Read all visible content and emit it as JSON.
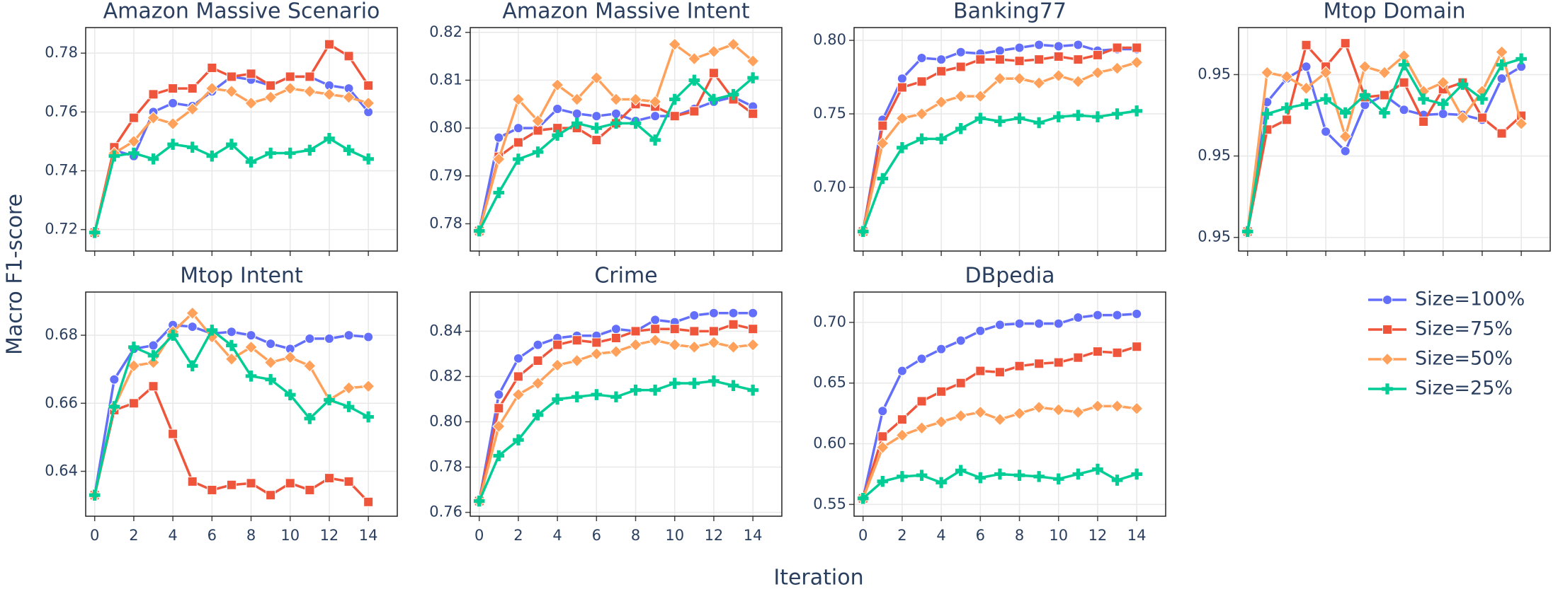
{
  "ylabel": "Macro F1-score",
  "xlabel": "Iteration",
  "chart_data": [
    {
      "type": "line",
      "title": "Amazon Massive Scenario",
      "x": [
        0,
        1,
        2,
        3,
        4,
        5,
        6,
        7,
        8,
        9,
        10,
        11,
        12,
        13,
        14
      ],
      "xlim": [
        -0.46,
        15.48
      ],
      "xticks": [
        0,
        2,
        4,
        6,
        8,
        10,
        12,
        14
      ],
      "ylim": [
        0.7127,
        0.7887
      ],
      "yticks": [
        0.72,
        0.74,
        0.76,
        0.78
      ],
      "grid": true,
      "series": [
        {
          "name": "Size=100%",
          "color": "#636efa",
          "marker": "circle",
          "values": [
            0.719,
            0.747,
            0.745,
            0.76,
            0.763,
            0.762,
            0.767,
            0.772,
            0.771,
            0.769,
            0.772,
            0.772,
            0.769,
            0.768,
            0.76
          ]
        },
        {
          "name": "Size=75%",
          "color": "#ef553b",
          "marker": "square",
          "values": [
            0.719,
            0.748,
            0.758,
            0.766,
            0.768,
            0.768,
            0.775,
            0.772,
            0.773,
            0.769,
            0.772,
            0.772,
            0.783,
            0.779,
            0.769
          ]
        },
        {
          "name": "Size=50%",
          "color": "#ffa15a",
          "marker": "diamond",
          "values": [
            0.719,
            0.746,
            0.75,
            0.758,
            0.756,
            0.761,
            0.768,
            0.767,
            0.763,
            0.765,
            0.768,
            0.767,
            0.766,
            0.765,
            0.763
          ]
        },
        {
          "name": "Size=25%",
          "color": "#00cc96",
          "marker": "cross",
          "values": [
            0.719,
            0.745,
            0.746,
            0.744,
            0.749,
            0.748,
            0.745,
            0.749,
            0.743,
            0.746,
            0.746,
            0.747,
            0.751,
            0.747,
            0.744
          ]
        }
      ]
    },
    {
      "type": "line",
      "title": "Amazon Massive Intent",
      "x": [
        0,
        1,
        2,
        3,
        4,
        5,
        6,
        7,
        8,
        9,
        10,
        11,
        12,
        13,
        14
      ],
      "xlim": [
        -0.46,
        15.48
      ],
      "xticks": [
        0,
        2,
        4,
        6,
        8,
        10,
        12,
        14
      ],
      "ylim": [
        0.7743,
        0.821
      ],
      "yticks": [
        0.78,
        0.79,
        {
          "value": 0.8,
          "label": "0.80"
        },
        0.81,
        0.82
      ],
      "grid": true,
      "series": [
        {
          "name": "Size=100%",
          "color": "#636efa",
          "marker": "circle",
          "values": [
            0.7785,
            0.798,
            0.8,
            0.8,
            0.804,
            0.803,
            0.8025,
            0.803,
            0.8015,
            0.8025,
            0.8025,
            0.804,
            0.8055,
            0.8065,
            0.8045
          ]
        },
        {
          "name": "Size=75%",
          "color": "#ef553b",
          "marker": "square",
          "values": [
            0.7785,
            0.794,
            0.797,
            0.7995,
            0.8,
            0.8,
            0.7975,
            0.801,
            0.805,
            0.8045,
            0.8025,
            0.8035,
            0.8115,
            0.806,
            0.803
          ]
        },
        {
          "name": "Size=50%",
          "color": "#ffa15a",
          "marker": "diamond",
          "values": [
            0.7785,
            0.7935,
            0.806,
            0.8015,
            0.809,
            0.806,
            0.8105,
            0.806,
            0.806,
            0.8055,
            0.8175,
            0.8145,
            0.816,
            0.8175,
            0.814
          ]
        },
        {
          "name": "Size=25%",
          "color": "#00cc96",
          "marker": "cross",
          "values": [
            0.7785,
            0.7865,
            0.7935,
            0.795,
            0.7985,
            0.801,
            0.8,
            0.801,
            0.801,
            0.7975,
            0.806,
            0.81,
            0.806,
            0.807,
            0.8105
          ]
        }
      ]
    },
    {
      "type": "line",
      "title": "Banking77",
      "x": [
        0,
        1,
        2,
        3,
        4,
        5,
        6,
        7,
        8,
        9,
        10,
        11,
        12,
        13,
        14
      ],
      "xlim": [
        -0.46,
        15.48
      ],
      "xticks": [
        0,
        2,
        4,
        6,
        8,
        10,
        12,
        14
      ],
      "ylim": [
        0.6567,
        0.8087
      ],
      "yticks": [
        {
          "value": 0.7,
          "label": "0.70"
        },
        0.75,
        {
          "value": 0.8,
          "label": "0.80"
        }
      ],
      "grid": true,
      "series": [
        {
          "name": "Size=100%",
          "color": "#636efa",
          "marker": "circle",
          "values": [
            0.67,
            0.746,
            0.774,
            0.788,
            0.787,
            0.792,
            0.791,
            0.793,
            0.795,
            0.797,
            0.796,
            0.797,
            0.793,
            0.794,
            0.794
          ]
        },
        {
          "name": "Size=75%",
          "color": "#ef553b",
          "marker": "square",
          "values": [
            0.67,
            0.742,
            0.768,
            0.772,
            0.779,
            0.782,
            0.787,
            0.787,
            0.786,
            0.787,
            0.789,
            0.787,
            0.79,
            0.795,
            0.795
          ]
        },
        {
          "name": "Size=50%",
          "color": "#ffa15a",
          "marker": "diamond",
          "values": [
            0.67,
            0.73,
            0.747,
            0.75,
            0.758,
            0.762,
            0.762,
            0.774,
            0.774,
            0.771,
            0.776,
            0.772,
            0.778,
            0.781,
            0.785
          ]
        },
        {
          "name": "Size=25%",
          "color": "#00cc96",
          "marker": "cross",
          "values": [
            0.67,
            0.706,
            0.727,
            0.733,
            0.733,
            0.74,
            0.747,
            0.745,
            0.747,
            0.744,
            0.748,
            0.749,
            0.748,
            0.75,
            0.752
          ]
        }
      ]
    },
    {
      "type": "line",
      "title": "Mtop Domain",
      "x": [
        0,
        1,
        2,
        3,
        4,
        5,
        6,
        7,
        8,
        9,
        10,
        11,
        12,
        13,
        14
      ],
      "xlim": [
        -0.46,
        15.48
      ],
      "xticks": [
        0,
        2,
        4,
        6,
        8,
        10,
        12,
        14
      ],
      "ylim": [
        0.94533,
        0.95631
      ],
      "yticks": [
        {
          "value": 0.946,
          "label": "0.95"
        },
        {
          "value": 0.95,
          "label": "0.95"
        },
        {
          "value": 0.954,
          "label": "0.95"
        }
      ],
      "grid": true,
      "series": [
        {
          "name": "Size=100%",
          "color": "#636efa",
          "marker": "circle",
          "values": [
            0.94629,
            0.95265,
            0.95381,
            0.95439,
            0.9512,
            0.95024,
            0.95251,
            0.95299,
            0.95227,
            0.95202,
            0.95207,
            0.95202,
            0.95178,
            0.95381,
            0.95439
          ]
        },
        {
          "name": "Size=75%",
          "color": "#ef553b",
          "marker": "square",
          "values": [
            0.94629,
            0.9513,
            0.95178,
            0.95545,
            0.95439,
            0.95554,
            0.95289,
            0.95299,
            0.95361,
            0.95169,
            0.95328,
            0.95361,
            0.95188,
            0.95111,
            0.95198
          ]
        },
        {
          "name": "Size=50%",
          "color": "#ffa15a",
          "marker": "diamond",
          "values": [
            0.94629,
            0.9541,
            0.9539,
            0.95333,
            0.9541,
            0.95096,
            0.95439,
            0.9541,
            0.95492,
            0.95318,
            0.95361,
            0.95188,
            0.95318,
            0.95511,
            0.95159
          ]
        },
        {
          "name": "Size=25%",
          "color": "#00cc96",
          "marker": "cross",
          "values": [
            0.94629,
            0.95207,
            0.95236,
            0.95255,
            0.9528,
            0.95212,
            0.95299,
            0.95212,
            0.95448,
            0.9528,
            0.95255,
            0.95352,
            0.9528,
            0.95448,
            0.95477
          ]
        }
      ]
    },
    {
      "type": "line",
      "title": "Mtop Intent",
      "x": [
        0,
        1,
        2,
        3,
        4,
        5,
        6,
        7,
        8,
        9,
        10,
        11,
        12,
        13,
        14
      ],
      "xlim": [
        -0.46,
        15.48
      ],
      "xticks": [
        0,
        2,
        4,
        6,
        8,
        10,
        12,
        14
      ],
      "ylim": [
        0.6268,
        0.6927
      ],
      "yticks": [
        0.64,
        0.66,
        0.68
      ],
      "grid": true,
      "series": [
        {
          "name": "Size=100%",
          "color": "#636efa",
          "marker": "circle",
          "values": [
            0.633,
            0.667,
            0.676,
            0.677,
            0.683,
            0.6825,
            0.6805,
            0.681,
            0.68,
            0.6775,
            0.676,
            0.679,
            0.679,
            0.68,
            0.6795
          ]
        },
        {
          "name": "Size=75%",
          "color": "#ef553b",
          "marker": "square",
          "values": [
            0.633,
            0.658,
            0.66,
            0.665,
            0.651,
            0.637,
            0.6345,
            0.636,
            0.6365,
            0.633,
            0.6365,
            0.6345,
            0.638,
            0.637,
            0.631
          ]
        },
        {
          "name": "Size=50%",
          "color": "#ffa15a",
          "marker": "diamond",
          "values": [
            0.633,
            0.659,
            0.671,
            0.672,
            0.681,
            0.6865,
            0.6795,
            0.673,
            0.6765,
            0.672,
            0.6735,
            0.671,
            0.661,
            0.6645,
            0.665
          ]
        },
        {
          "name": "Size=25%",
          "color": "#00cc96",
          "marker": "cross",
          "values": [
            0.633,
            0.659,
            0.6765,
            0.674,
            0.68,
            0.671,
            0.6815,
            0.677,
            0.668,
            0.667,
            0.6625,
            0.6555,
            0.661,
            0.659,
            0.656
          ]
        }
      ]
    },
    {
      "type": "line",
      "title": "Crime",
      "x": [
        0,
        1,
        2,
        3,
        4,
        5,
        6,
        7,
        8,
        9,
        10,
        11,
        12,
        13,
        14
      ],
      "xlim": [
        -0.46,
        15.48
      ],
      "xticks": [
        0,
        2,
        4,
        6,
        8,
        10,
        12,
        14
      ],
      "ylim": [
        0.7583,
        0.8573
      ],
      "yticks": [
        0.76,
        0.78,
        {
          "value": 0.8,
          "label": "0.80"
        },
        0.82,
        0.84
      ],
      "grid": true,
      "series": [
        {
          "name": "Size=100%",
          "color": "#636efa",
          "marker": "circle",
          "values": [
            0.765,
            0.812,
            0.828,
            0.834,
            0.837,
            0.838,
            0.838,
            0.841,
            0.84,
            0.845,
            0.844,
            0.847,
            0.848,
            0.848,
            0.848
          ]
        },
        {
          "name": "Size=75%",
          "color": "#ef553b",
          "marker": "square",
          "values": [
            0.765,
            0.806,
            0.82,
            0.827,
            0.834,
            0.836,
            0.835,
            0.837,
            0.84,
            0.841,
            0.841,
            0.84,
            0.84,
            0.843,
            0.841
          ]
        },
        {
          "name": "Size=50%",
          "color": "#ffa15a",
          "marker": "diamond",
          "values": [
            0.765,
            0.798,
            0.812,
            0.817,
            0.825,
            0.827,
            0.83,
            0.831,
            0.834,
            0.836,
            0.834,
            0.833,
            0.835,
            0.833,
            0.834
          ]
        },
        {
          "name": "Size=25%",
          "color": "#00cc96",
          "marker": "cross",
          "values": [
            0.765,
            0.785,
            0.792,
            0.803,
            0.81,
            0.811,
            0.812,
            0.811,
            0.814,
            0.814,
            0.817,
            0.817,
            0.818,
            0.816,
            0.814
          ]
        }
      ]
    },
    {
      "type": "line",
      "title": "DBpedia",
      "x": [
        0,
        1,
        2,
        3,
        4,
        5,
        6,
        7,
        8,
        9,
        10,
        11,
        12,
        13,
        14
      ],
      "xlim": [
        -0.46,
        15.48
      ],
      "xticks": [
        0,
        2,
        4,
        6,
        8,
        10,
        12,
        14
      ],
      "ylim": [
        0.5403,
        0.725
      ],
      "yticks": [
        0.55,
        {
          "value": 0.6,
          "label": "0.60"
        },
        0.65,
        {
          "value": 0.7,
          "label": "0.70"
        }
      ],
      "grid": true,
      "series": [
        {
          "name": "Size=100%",
          "color": "#636efa",
          "marker": "circle",
          "values": [
            0.555,
            0.627,
            0.66,
            0.67,
            0.678,
            0.685,
            0.693,
            0.698,
            0.699,
            0.699,
            0.699,
            0.704,
            0.706,
            0.706,
            0.707
          ]
        },
        {
          "name": "Size=75%",
          "color": "#ef553b",
          "marker": "square",
          "values": [
            0.555,
            0.606,
            0.62,
            0.635,
            0.643,
            0.65,
            0.66,
            0.659,
            0.664,
            0.666,
            0.667,
            0.671,
            0.676,
            0.675,
            0.68
          ]
        },
        {
          "name": "Size=50%",
          "color": "#ffa15a",
          "marker": "diamond",
          "values": [
            0.555,
            0.597,
            0.607,
            0.613,
            0.618,
            0.623,
            0.626,
            0.62,
            0.625,
            0.63,
            0.628,
            0.626,
            0.631,
            0.631,
            0.629
          ]
        },
        {
          "name": "Size=25%",
          "color": "#00cc96",
          "marker": "cross",
          "values": [
            0.555,
            0.569,
            0.573,
            0.574,
            0.568,
            0.578,
            0.572,
            0.575,
            0.574,
            0.573,
            0.571,
            0.575,
            0.579,
            0.57,
            0.575
          ]
        }
      ]
    }
  ]
}
